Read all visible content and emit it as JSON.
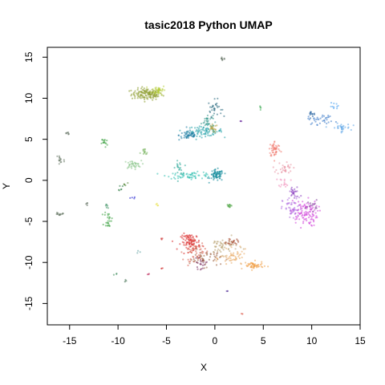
{
  "chart_data": {
    "type": "scatter",
    "title": "tasic2018 Python UMAP",
    "xlabel": "X",
    "ylabel": "Y",
    "xlim": [
      -17.3,
      15
    ],
    "ylim": [
      -17.6,
      16.2
    ],
    "xticks": [
      -15,
      -10,
      -5,
      0,
      5,
      10,
      15
    ],
    "yticks": [
      -15,
      -10,
      -5,
      0,
      5,
      10,
      15
    ],
    "grid": false,
    "legend": "none",
    "clusters": [
      {
        "x": -7.0,
        "y": 10.5,
        "sx": 0.8,
        "sy": 0.35,
        "n": 140,
        "color": "#8a9a2a"
      },
      {
        "x": -5.8,
        "y": 11.0,
        "sx": 0.35,
        "sy": 0.3,
        "n": 40,
        "color": "#b8d040"
      },
      {
        "x": 0.0,
        "y": 8.8,
        "sx": 0.35,
        "sy": 0.5,
        "n": 30,
        "color": "#2a6a80"
      },
      {
        "x": -0.8,
        "y": 7.2,
        "sx": 0.3,
        "sy": 0.4,
        "n": 30,
        "color": "#3a9a90"
      },
      {
        "x": -1.0,
        "y": 6.0,
        "sx": 0.9,
        "sy": 0.3,
        "n": 80,
        "color": "#20a0a8"
      },
      {
        "x": -2.7,
        "y": 5.5,
        "sx": 0.5,
        "sy": 0.3,
        "n": 50,
        "color": "#1a7aa0"
      },
      {
        "x": -0.2,
        "y": 6.3,
        "sx": 0.25,
        "sy": 0.25,
        "n": 20,
        "color": "#b0a040"
      },
      {
        "x": 0.2,
        "y": 0.6,
        "sx": 0.35,
        "sy": 0.35,
        "n": 70,
        "color": "#108a9a"
      },
      {
        "x": -2.5,
        "y": 0.6,
        "sx": 1.2,
        "sy": 0.2,
        "n": 60,
        "color": "#30c0b0"
      },
      {
        "x": -3.7,
        "y": 1.5,
        "sx": 0.2,
        "sy": 0.4,
        "n": 20,
        "color": "#28a898"
      },
      {
        "x": -8.5,
        "y": 1.9,
        "sx": 0.45,
        "sy": 0.25,
        "n": 40,
        "color": "#90c890"
      },
      {
        "x": -7.3,
        "y": 3.3,
        "sx": 0.2,
        "sy": 0.3,
        "n": 15,
        "color": "#80b868"
      },
      {
        "x": -11.4,
        "y": 4.6,
        "sx": 0.15,
        "sy": 0.3,
        "n": 15,
        "color": "#3aa040"
      },
      {
        "x": -16.0,
        "y": 2.5,
        "sx": 0.25,
        "sy": 0.5,
        "n": 15,
        "color": "#6a7a68"
      },
      {
        "x": -15.2,
        "y": 5.7,
        "sx": 0.15,
        "sy": 0.1,
        "n": 6,
        "color": "#556655"
      },
      {
        "x": 6.2,
        "y": 3.8,
        "sx": 0.3,
        "sy": 0.5,
        "n": 50,
        "color": "#f07a70"
      },
      {
        "x": 7.2,
        "y": 1.5,
        "sx": 0.4,
        "sy": 0.4,
        "n": 30,
        "color": "#e890a0"
      },
      {
        "x": 7.2,
        "y": -0.2,
        "sx": 0.3,
        "sy": 0.3,
        "n": 15,
        "color": "#f08ab8"
      },
      {
        "x": 9.2,
        "y": -4.0,
        "sx": 0.7,
        "sy": 0.8,
        "n": 110,
        "color": "#d040d8"
      },
      {
        "x": 8.0,
        "y": -3.5,
        "sx": 0.5,
        "sy": 0.7,
        "n": 50,
        "color": "#b070e0"
      },
      {
        "x": 8.2,
        "y": -1.5,
        "sx": 0.3,
        "sy": 0.4,
        "n": 25,
        "color": "#8a40c0"
      },
      {
        "x": 10.0,
        "y": -3.0,
        "sx": 0.3,
        "sy": 0.3,
        "n": 15,
        "color": "#7a3a98"
      },
      {
        "x": 11.0,
        "y": 7.4,
        "sx": 0.7,
        "sy": 0.3,
        "n": 35,
        "color": "#3a7ac8"
      },
      {
        "x": 13.0,
        "y": 6.4,
        "sx": 0.5,
        "sy": 0.25,
        "n": 30,
        "color": "#60a8e8"
      },
      {
        "x": 10.0,
        "y": 8.2,
        "sx": 0.3,
        "sy": 0.2,
        "n": 12,
        "color": "#1a5a9a"
      },
      {
        "x": 12.5,
        "y": 9.0,
        "sx": 0.3,
        "sy": 0.2,
        "n": 10,
        "color": "#4aa0f0"
      },
      {
        "x": -2.5,
        "y": -7.5,
        "sx": 0.5,
        "sy": 0.5,
        "n": 80,
        "color": "#d82020"
      },
      {
        "x": -2.0,
        "y": -8.6,
        "sx": 0.6,
        "sy": 0.6,
        "n": 60,
        "color": "#d86050"
      },
      {
        "x": -1.0,
        "y": -9.5,
        "sx": 0.8,
        "sy": 0.5,
        "n": 50,
        "color": "#9a6040"
      },
      {
        "x": 0.8,
        "y": -8.0,
        "sx": 0.8,
        "sy": 0.5,
        "n": 50,
        "color": "#b8a070"
      },
      {
        "x": 2.0,
        "y": -9.5,
        "sx": 0.7,
        "sy": 0.5,
        "n": 50,
        "color": "#e8a860"
      },
      {
        "x": 4.0,
        "y": -10.4,
        "sx": 0.5,
        "sy": 0.25,
        "n": 50,
        "color": "#f0a048"
      },
      {
        "x": 1.8,
        "y": -7.5,
        "sx": 0.3,
        "sy": 0.2,
        "n": 20,
        "color": "#a04020"
      },
      {
        "x": -1.5,
        "y": -10.2,
        "sx": 0.3,
        "sy": 0.3,
        "n": 20,
        "color": "#7a3060"
      },
      {
        "x": -16.0,
        "y": -4.1,
        "sx": 0.25,
        "sy": 0.1,
        "n": 15,
        "color": "#6a7a68"
      },
      {
        "x": -11.0,
        "y": -4.8,
        "sx": 0.2,
        "sy": 0.5,
        "n": 25,
        "color": "#3aa040"
      },
      {
        "x": -11.2,
        "y": -3.0,
        "sx": 0.1,
        "sy": 0.2,
        "n": 6,
        "color": "#3a9060"
      },
      {
        "x": -9.8,
        "y": -1.0,
        "sx": 0.15,
        "sy": 0.2,
        "n": 6,
        "color": "#2a7a40"
      },
      {
        "x": -9.2,
        "y": -0.5,
        "sx": 0.1,
        "sy": 0.15,
        "n": 5,
        "color": "#5a8a40"
      },
      {
        "x": 1.5,
        "y": -3.0,
        "sx": 0.15,
        "sy": 0.2,
        "n": 10,
        "color": "#3a9a30"
      },
      {
        "x": 4.7,
        "y": 8.8,
        "sx": 0.1,
        "sy": 0.15,
        "n": 5,
        "color": "#4ab060"
      },
      {
        "x": 0.8,
        "y": 14.8,
        "sx": 0.15,
        "sy": 0.12,
        "n": 8,
        "color": "#607060"
      },
      {
        "x": -13.2,
        "y": -2.8,
        "sx": 0.1,
        "sy": 0.1,
        "n": 4,
        "color": "#556655"
      },
      {
        "x": -8.5,
        "y": -2.0,
        "sx": 0.1,
        "sy": 0.1,
        "n": 4,
        "color": "#2020d0"
      },
      {
        "x": -6.0,
        "y": -3.0,
        "sx": 0.1,
        "sy": 0.15,
        "n": 4,
        "color": "#e8e040"
      },
      {
        "x": -5.5,
        "y": -7.2,
        "sx": 0.1,
        "sy": 0.1,
        "n": 4,
        "color": "#d04040"
      },
      {
        "x": -5.6,
        "y": -10.8,
        "sx": 0.1,
        "sy": 0.1,
        "n": 3,
        "color": "#d03030"
      },
      {
        "x": -7.0,
        "y": -11.5,
        "sx": 0.1,
        "sy": 0.1,
        "n": 3,
        "color": "#c03060"
      },
      {
        "x": -10.2,
        "y": -11.5,
        "sx": 0.1,
        "sy": 0.1,
        "n": 3,
        "color": "#3a8a5a"
      },
      {
        "x": -9.2,
        "y": -12.2,
        "sx": 0.1,
        "sy": 0.08,
        "n": 3,
        "color": "#3a6a4a"
      },
      {
        "x": -8.0,
        "y": -8.7,
        "sx": 0.1,
        "sy": 0.1,
        "n": 3,
        "color": "#60a0a0"
      },
      {
        "x": 2.6,
        "y": 7.2,
        "sx": 0.08,
        "sy": 0.08,
        "n": 3,
        "color": "#7030a0"
      },
      {
        "x": 1.3,
        "y": -13.5,
        "sx": 0.08,
        "sy": 0.08,
        "n": 3,
        "color": "#6040a0"
      },
      {
        "x": 2.8,
        "y": -16.2,
        "sx": 0.08,
        "sy": 0.08,
        "n": 3,
        "color": "#e07060"
      }
    ]
  }
}
